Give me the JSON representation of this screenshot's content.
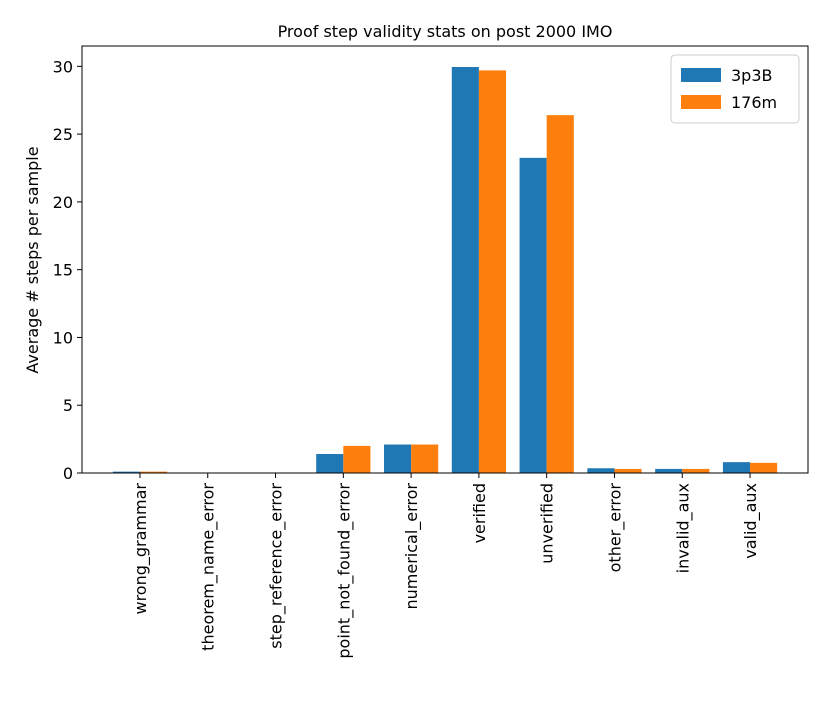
{
  "chart_data": {
    "type": "bar",
    "title": "Proof step validity stats on post 2000 IMO",
    "ylabel": "Average # steps per sample",
    "categories": [
      "wrong_grammar",
      "theorem_name_error",
      "step_reference_error",
      "point_not_found_error",
      "numerical_error",
      "verified",
      "unverified",
      "other_error",
      "invalid_aux",
      "valid_aux"
    ],
    "series": [
      {
        "name": "3p3B",
        "color": "#1f77b4",
        "values": [
          0.1,
          0,
          0,
          1.4,
          2.1,
          29.95,
          23.25,
          0.35,
          0.3,
          0.8
        ]
      },
      {
        "name": "176m",
        "color": "#ff7f0e",
        "values": [
          0.1,
          0,
          0,
          2.0,
          2.1,
          29.7,
          26.4,
          0.3,
          0.3,
          0.75
        ]
      }
    ],
    "ylim": [
      0,
      31.5
    ],
    "yticks": [
      0,
      5,
      10,
      15,
      20,
      25,
      30
    ],
    "legend": "upper right"
  }
}
